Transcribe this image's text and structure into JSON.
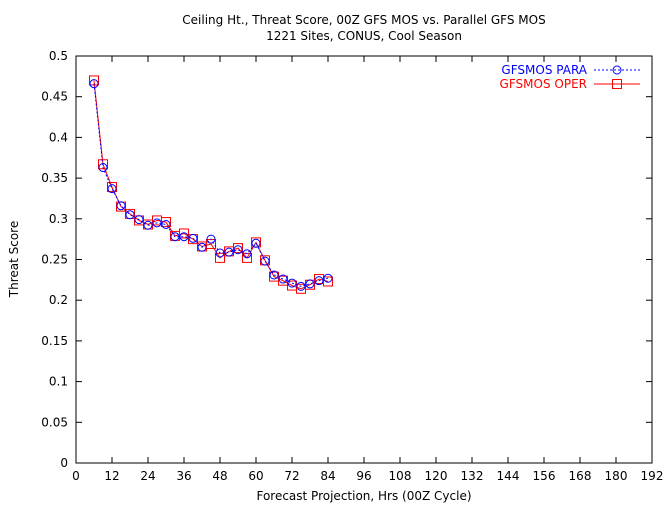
{
  "chart_data": {
    "type": "line",
    "title": "Ceiling Ht., Threat Score, 00Z GFS MOS vs. Parallel GFS MOS",
    "subtitle": "1221 Sites, CONUS, Cool Season",
    "xlabel": "Forecast Projection, Hrs (00Z Cycle)",
    "ylabel": "Threat Score",
    "xlim": [
      0,
      192
    ],
    "ylim": [
      0,
      0.5
    ],
    "x_ticks": [
      0,
      12,
      24,
      36,
      48,
      60,
      72,
      84,
      96,
      108,
      120,
      132,
      144,
      156,
      168,
      180,
      192
    ],
    "y_ticks": [
      0,
      0.05,
      0.1,
      0.15,
      0.2,
      0.25,
      0.3,
      0.35,
      0.4,
      0.45,
      0.5
    ],
    "grid": false,
    "legend_position": "top-right",
    "x": [
      6,
      9,
      12,
      15,
      18,
      21,
      24,
      27,
      30,
      33,
      36,
      39,
      42,
      45,
      48,
      51,
      54,
      57,
      60,
      63,
      66,
      69,
      72,
      75,
      78,
      81,
      84
    ],
    "series": [
      {
        "name": "GFSMOS PARA",
        "color": "#0000ff",
        "line_style": "dotted",
        "marker": "circle",
        "values": [
          0.466,
          0.363,
          0.337,
          0.316,
          0.305,
          0.299,
          0.292,
          0.295,
          0.293,
          0.278,
          0.278,
          0.276,
          0.265,
          0.275,
          0.258,
          0.259,
          0.262,
          0.257,
          0.27,
          0.248,
          0.231,
          0.226,
          0.221,
          0.217,
          0.22,
          0.224,
          0.227
        ]
      },
      {
        "name": "GFSMOS OPER",
        "color": "#ff0000",
        "line_style": "solid",
        "marker": "square",
        "values": [
          0.47,
          0.367,
          0.339,
          0.315,
          0.306,
          0.298,
          0.293,
          0.298,
          0.296,
          0.279,
          0.282,
          0.275,
          0.266,
          0.269,
          0.252,
          0.26,
          0.264,
          0.252,
          0.271,
          0.249,
          0.229,
          0.224,
          0.218,
          0.214,
          0.219,
          0.226,
          0.223
        ]
      }
    ]
  }
}
